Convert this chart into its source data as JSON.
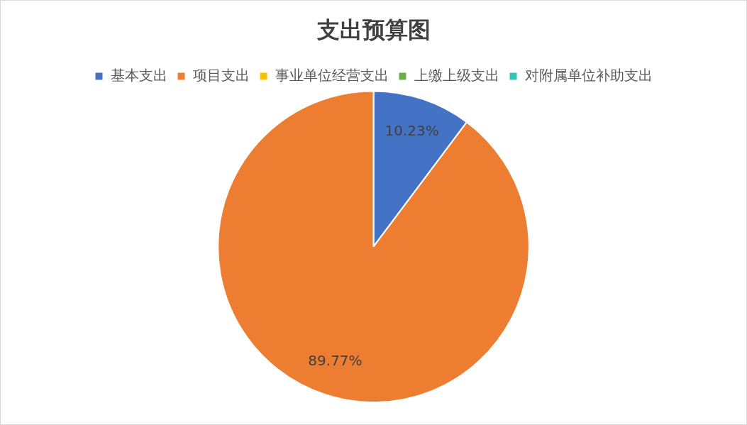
{
  "chart_data": {
    "type": "pie",
    "title": "支出预算图",
    "categories": [
      "基本支出",
      "项目支出",
      "事业单位经营支出",
      "上缴上级支出",
      "对附属单位补助支出"
    ],
    "values": [
      10.23,
      89.77,
      0,
      0,
      0
    ],
    "colors": [
      "#4472c4",
      "#ed7d31",
      "#ffc000",
      "#70ad47",
      "#2ec4b6"
    ],
    "value_labels": [
      "10.23%",
      "89.77%",
      null,
      null,
      null
    ],
    "legend": "top"
  }
}
